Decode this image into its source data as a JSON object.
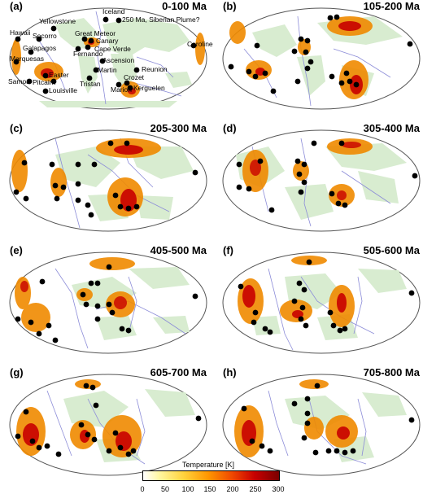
{
  "colorbar": {
    "title": "Temperature [K]",
    "ticks": [
      "0",
      "50",
      "100",
      "150",
      "200",
      "250",
      "300"
    ],
    "colors": [
      "#ffffff",
      "#fff7a0",
      "#ffd23c",
      "#ff9600",
      "#f04a00",
      "#c80000",
      "#7a0000"
    ]
  },
  "colors": {
    "continent_fill": "#d8ecd0",
    "plate_boundary": "#8c8cd8",
    "plume_marker": "#000000",
    "map_outline": "#555555"
  },
  "panels": [
    {
      "label": "(a)",
      "title": "0-100 Ma"
    },
    {
      "label": "(b)",
      "title": "105-200 Ma"
    },
    {
      "label": "(c)",
      "title": "205-300 Ma"
    },
    {
      "label": "(d)",
      "title": "305-400 Ma"
    },
    {
      "label": "(e)",
      "title": "405-500 Ma"
    },
    {
      "label": "(f)",
      "title": "505-600 Ma"
    },
    {
      "label": "(g)",
      "title": "605-700 Ma"
    },
    {
      "label": "(h)",
      "title": "705-800 Ma"
    }
  ],
  "hotspot_labels": {
    "iceland": "Iceland",
    "yellowstone": "Yellowstone",
    "siberian": "250 Ma, Siberian Plume?",
    "hawaii": "Hawaii",
    "socorro": "Socorro",
    "great_meteor": "Great Meteor",
    "canary": "Canary",
    "caroline": "Caroline",
    "galapagos": "Galapagos",
    "fernando": "Fernando",
    "cape_verde": "Cape Verde",
    "marquesas": "Marquesas",
    "ascension": "Ascension",
    "reunion": "Reunion",
    "martin": "Martin",
    "easter": "Easter",
    "samoa": "Samoa",
    "pitcairn": "Pitcairn",
    "tristan": "Tristan",
    "crozet": "Crozet",
    "marion": "Marion",
    "kerguelen": "Kerguelen",
    "louisville": "Louisville"
  }
}
